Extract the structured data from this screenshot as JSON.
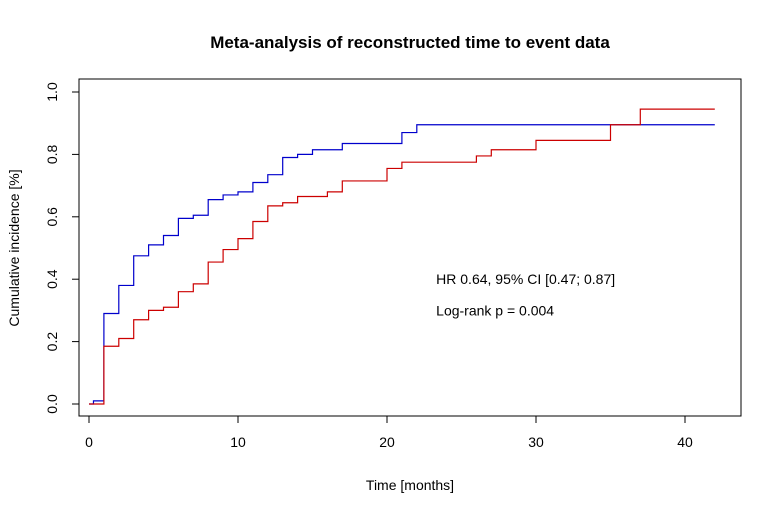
{
  "chart_data": {
    "type": "line",
    "title": "Meta-analysis of reconstructed time to event data",
    "xlabel": "Time [months]",
    "ylabel": "Cumulative incidence [%]",
    "xlim": [
      0,
      42
    ],
    "ylim": [
      0,
      1
    ],
    "x_ticks": [
      0,
      10,
      20,
      30,
      40
    ],
    "y_ticks": [
      0.0,
      0.2,
      0.4,
      0.6,
      0.8,
      1.0
    ],
    "x_tick_labels": [
      "0",
      "10",
      "20",
      "30",
      "40"
    ],
    "y_tick_labels": [
      "0.0",
      "0.2",
      "0.4",
      "0.6",
      "0.8",
      "1.0"
    ],
    "grid": false,
    "step": true,
    "series": [
      {
        "color": "#0000cc",
        "x": [
          0,
          0.3,
          1,
          2,
          3,
          4,
          5,
          6,
          7,
          8,
          9,
          10,
          11,
          12,
          13,
          14,
          15,
          17,
          21,
          22,
          42
        ],
        "y": [
          0,
          0.01,
          0.29,
          0.38,
          0.475,
          0.51,
          0.54,
          0.595,
          0.605,
          0.655,
          0.67,
          0.68,
          0.71,
          0.735,
          0.79,
          0.8,
          0.815,
          0.835,
          0.87,
          0.895,
          0.895
        ]
      },
      {
        "color": "#cc0000",
        "x": [
          0,
          1,
          2,
          3,
          4,
          5,
          6,
          7,
          8,
          9,
          10,
          11,
          12,
          13,
          14,
          16,
          17,
          20,
          21,
          26,
          27,
          30,
          35,
          37,
          42
        ],
        "y": [
          0,
          0.185,
          0.21,
          0.27,
          0.3,
          0.31,
          0.36,
          0.385,
          0.455,
          0.495,
          0.53,
          0.585,
          0.635,
          0.645,
          0.665,
          0.68,
          0.715,
          0.755,
          0.775,
          0.795,
          0.815,
          0.845,
          0.895,
          0.945,
          0.945
        ]
      }
    ],
    "annotations": [
      {
        "text": "HR 0.64, 95% CI [0.47; 0.87]",
        "x": 23.3,
        "y": 0.4
      },
      {
        "text": "Log-rank p = 0.004",
        "x": 23.3,
        "y": 0.3
      }
    ]
  }
}
